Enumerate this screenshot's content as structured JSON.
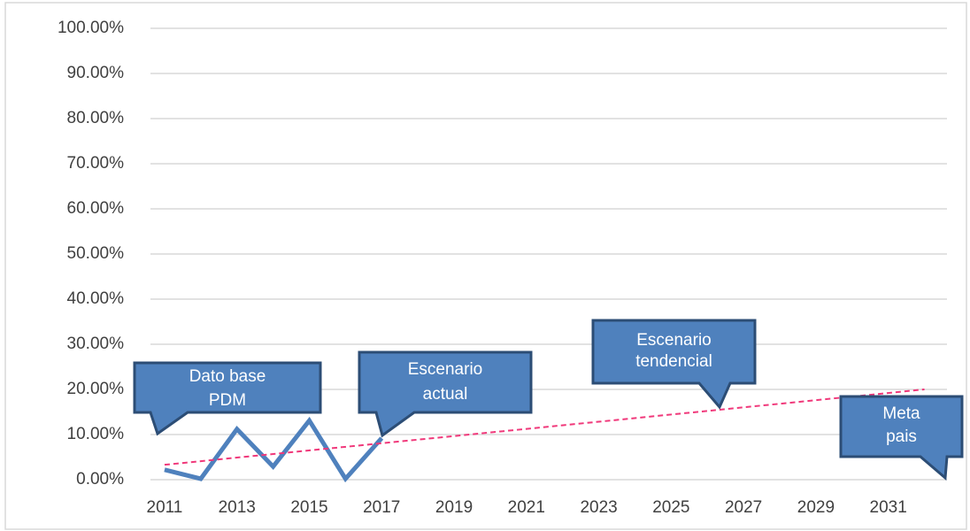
{
  "chart_data": {
    "type": "line",
    "xlim": [
      2010.5,
      2032.5
    ],
    "xticks": [
      2011,
      2013,
      2015,
      2017,
      2019,
      2021,
      2023,
      2025,
      2027,
      2029,
      2031
    ],
    "ylim": [
      0,
      100
    ],
    "yticks": [
      {
        "value": 0,
        "label": "0.00%"
      },
      {
        "value": 10,
        "label": "10.00%"
      },
      {
        "value": 20,
        "label": "20.00%"
      },
      {
        "value": 30,
        "label": "30.00%"
      },
      {
        "value": 40,
        "label": "40.00%"
      },
      {
        "value": 50,
        "label": "50.00%"
      },
      {
        "value": 60,
        "label": "60.00%"
      },
      {
        "value": 70,
        "label": "70.00%"
      },
      {
        "value": 80,
        "label": "80.00%"
      },
      {
        "value": 90,
        "label": "90.00%"
      },
      {
        "value": 100,
        "label": "100.00%"
      }
    ],
    "grid": true,
    "series": [
      {
        "color": "#4f81bd",
        "x": [
          2011,
          2012,
          2013,
          2014,
          2015,
          2016,
          2017
        ],
        "values": [
          2.2,
          0.2,
          11.2,
          2.9,
          13.1,
          0.2,
          9.2
        ]
      },
      {
        "color": "#f0387a",
        "dashed": true,
        "x": [
          2011,
          2032
        ],
        "values": [
          3.3,
          20
        ]
      }
    ],
    "annotations": [
      {
        "lines": [
          "Dato base",
          "PDM"
        ]
      },
      {
        "lines": [
          "Escenario",
          "actual"
        ]
      },
      {
        "lines": [
          "Escenario",
          "tendencial"
        ]
      },
      {
        "lines": [
          "Meta",
          "pais"
        ]
      }
    ]
  }
}
